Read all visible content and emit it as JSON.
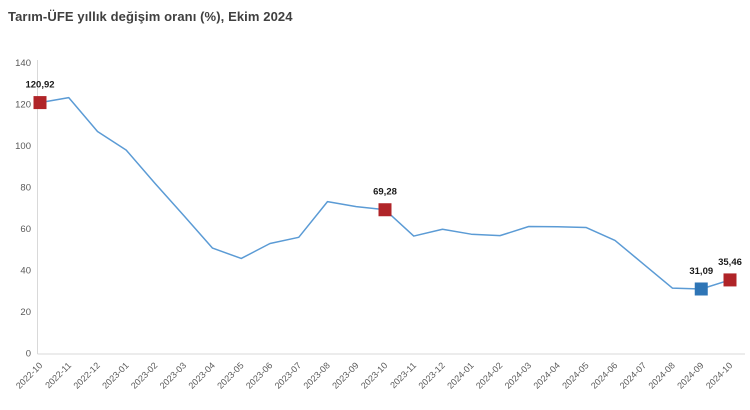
{
  "header": {
    "title": "Tarım-ÜFE yıllık değişim oranı (%), Ekim 2024"
  },
  "colors": {
    "line": "#5B9BD5",
    "marker_red": "#B02428",
    "marker_blue": "#2E75B6",
    "axis": "#D9D9D9",
    "tick_text": "#595959",
    "data_label_text": "#1A1A1A",
    "title_text": "#404040"
  },
  "chart_data": {
    "type": "line",
    "title": "Tarım-ÜFE yıllık değişim oranı (%), Ekim 2024",
    "xlabel": "",
    "ylabel": "",
    "ylim": [
      0,
      140
    ],
    "yticks": [
      0,
      20,
      40,
      60,
      80,
      100,
      120,
      140
    ],
    "grid": false,
    "legend": "none",
    "categories": [
      "2022-10",
      "2022-11",
      "2022-12",
      "2023-01",
      "2023-02",
      "2023-03",
      "2023-04",
      "2023-05",
      "2023-06",
      "2023-07",
      "2023-08",
      "2023-09",
      "2023-10",
      "2023-11",
      "2023-12",
      "2024-01",
      "2024-02",
      "2024-03",
      "2024-04",
      "2024-05",
      "2024-06",
      "2024-07",
      "2024-08",
      "2024-09",
      "2024-10"
    ],
    "series": [
      {
        "name": "Tarım-ÜFE yıllık değişim oranı (%)",
        "values": [
          120.92,
          123.3,
          107.0,
          98.0,
          82.0,
          66.5,
          50.8,
          45.8,
          53.0,
          56.0,
          73.2,
          70.8,
          69.28,
          56.6,
          59.9,
          57.5,
          56.8,
          61.2,
          61.1,
          60.7,
          54.5,
          43.0,
          31.5,
          31.09,
          35.46
        ]
      }
    ],
    "annotations": [
      {
        "category": "2022-10",
        "value": 120.92,
        "label": "120,92",
        "marker": "red"
      },
      {
        "category": "2023-10",
        "value": 69.28,
        "label": "69,28",
        "marker": "red"
      },
      {
        "category": "2024-09",
        "value": 31.09,
        "label": "31,09",
        "marker": "blue"
      },
      {
        "category": "2024-10",
        "value": 35.46,
        "label": "35,46",
        "marker": "red"
      }
    ]
  }
}
